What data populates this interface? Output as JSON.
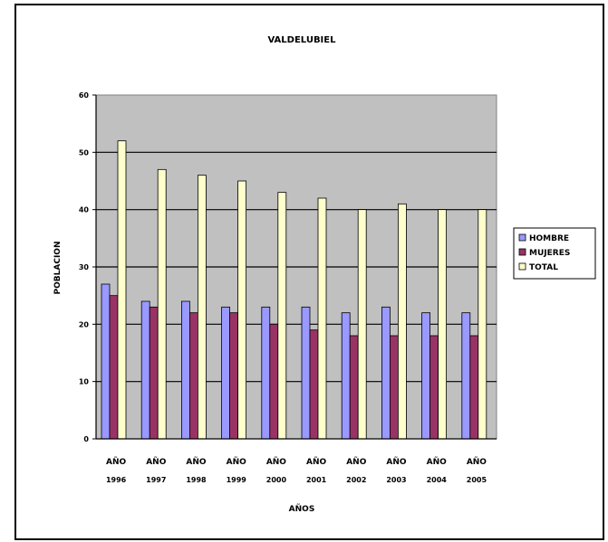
{
  "chart_data": {
    "type": "bar",
    "title": "VALDELUBIEL",
    "xlabel": "AÑOS",
    "ylabel": "POBLACION",
    "ylim": [
      0,
      60
    ],
    "yticks": [
      0,
      10,
      20,
      30,
      40,
      50,
      60
    ],
    "grid": true,
    "legend_position": "right",
    "categories": [
      [
        "AÑO",
        "1996"
      ],
      [
        "AÑO",
        "1997"
      ],
      [
        "AÑO",
        "1998"
      ],
      [
        "AÑO",
        "1999"
      ],
      [
        "AÑO",
        "2000"
      ],
      [
        "AÑO",
        "2001"
      ],
      [
        "AÑO",
        "2002"
      ],
      [
        "AÑO",
        "2003"
      ],
      [
        "AÑO",
        "2004"
      ],
      [
        "AÑO",
        "2005"
      ]
    ],
    "series": [
      {
        "name": "HOMBRE",
        "color": "#9999ff",
        "values": [
          27,
          24,
          24,
          23,
          23,
          23,
          22,
          23,
          22,
          22
        ]
      },
      {
        "name": "MUJERES",
        "color": "#993366",
        "values": [
          25,
          23,
          22,
          22,
          20,
          19,
          18,
          18,
          18,
          18
        ]
      },
      {
        "name": "TOTAL",
        "color": "#ffffcc",
        "values": [
          52,
          47,
          46,
          45,
          43,
          42,
          40,
          41,
          40,
          40
        ]
      }
    ],
    "plot_background": "#c0c0c0"
  }
}
